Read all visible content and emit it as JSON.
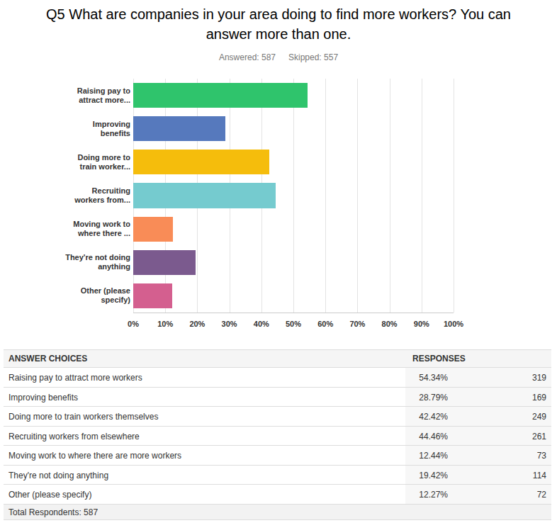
{
  "chart_data": {
    "type": "bar",
    "orientation": "horizontal",
    "title": "Q5 What are companies in your area doing to find more workers? You can answer more than one.",
    "annotations": [
      "Answered: 587",
      "Skipped: 557"
    ],
    "categories": [
      "Raising pay to attract more...",
      "Improving benefits",
      "Doing more to train worker...",
      "Recruiting workers from...",
      "Moving work to where there ...",
      "They're not doing anything",
      "Other (please specify)"
    ],
    "values": [
      54.34,
      28.79,
      42.42,
      44.46,
      12.44,
      19.42,
      12.27
    ],
    "colors": [
      "#2fc46c",
      "#5679bd",
      "#f5bd0c",
      "#75cbcf",
      "#f98c57",
      "#7b5a8e",
      "#d45f8f"
    ],
    "xlim": [
      0,
      100
    ],
    "xticks": [
      {
        "value": 0,
        "label": "0%"
      },
      {
        "value": 10,
        "label": "10%"
      },
      {
        "value": 20,
        "label": "20%"
      },
      {
        "value": 30,
        "label": "30%"
      },
      {
        "value": 40,
        "label": "40%"
      },
      {
        "value": 50,
        "label": "50%"
      },
      {
        "value": 60,
        "label": "60%"
      },
      {
        "value": 70,
        "label": "70%"
      },
      {
        "value": 80,
        "label": "80%"
      },
      {
        "value": 90,
        "label": "90%"
      },
      {
        "value": 100,
        "label": "100%"
      }
    ],
    "grid": true
  },
  "table": {
    "header": [
      "ANSWER CHOICES",
      "RESPONSES"
    ],
    "rows": [
      [
        "Raising pay to attract more workers",
        "54.34%",
        319
      ],
      [
        "Improving benefits",
        "28.79%",
        169
      ],
      [
        "Doing more to train workers themselves",
        "42.42%",
        249
      ],
      [
        "Recruiting workers from elsewhere",
        "44.46%",
        261
      ],
      [
        "Moving work to where there are more workers",
        "12.44%",
        73
      ],
      [
        "They're not doing anything",
        "19.42%",
        114
      ],
      [
        "Other (please specify)",
        "12.27%",
        72
      ]
    ],
    "footer": "Total Respondents: 587"
  }
}
